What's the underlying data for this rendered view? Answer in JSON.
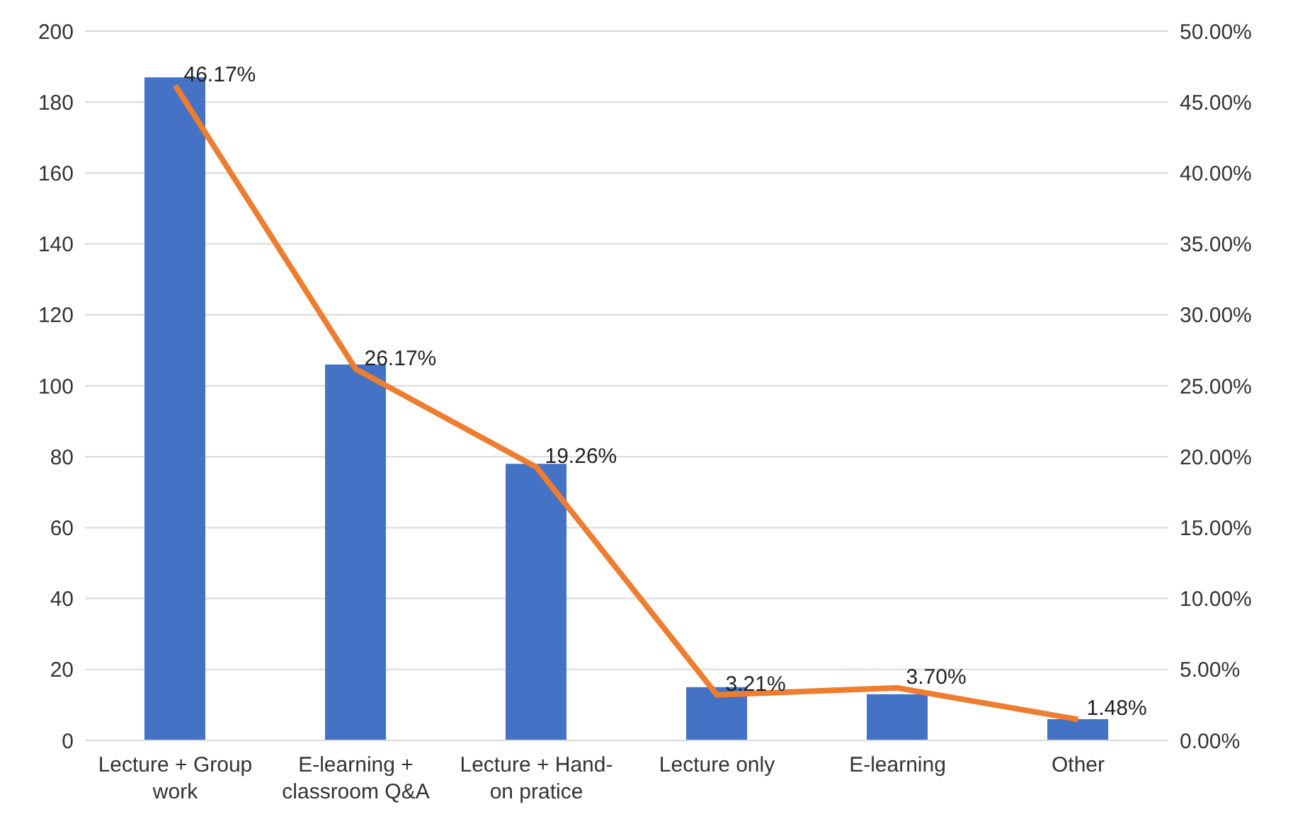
{
  "chart_data": {
    "type": "bar",
    "categories": [
      "Lecture + Group work",
      "E-learning + classroom Q&A",
      "Lecture + Hand-on pratice",
      "Lecture only",
      "E-learning",
      "Other"
    ],
    "series": [
      {
        "color": "#4472c4",
        "values": [
          187,
          106,
          78,
          15,
          13,
          6
        ]
      },
      {
        "type": "line",
        "axis": "y2",
        "color": "#ed7d31",
        "values": [
          46.17,
          26.17,
          19.26,
          3.21,
          3.7,
          1.48
        ],
        "value_labels": [
          "46.17%",
          "26.17%",
          "19.26%",
          "3.21%",
          "3.70%",
          "1.48%"
        ],
        "marker": "none",
        "line_style": "solid"
      }
    ],
    "ylim": [
      0,
      200
    ],
    "yticks": [
      0,
      20,
      40,
      60,
      80,
      100,
      120,
      140,
      160,
      180,
      200
    ],
    "y2lim": [
      0,
      50
    ],
    "y2ticks": [
      {
        "value": 0,
        "label": "0.00%"
      },
      {
        "value": 5,
        "label": "5.00%"
      },
      {
        "value": 10,
        "label": "10.00%"
      },
      {
        "value": 15,
        "label": "15.00%"
      },
      {
        "value": 20,
        "label": "20.00%"
      },
      {
        "value": 25,
        "label": "25.00%"
      },
      {
        "value": 30,
        "label": "30.00%"
      },
      {
        "value": 35,
        "label": "35.00%"
      },
      {
        "value": 40,
        "label": "40.00%"
      },
      {
        "value": 45,
        "label": "45.00%"
      },
      {
        "value": 50,
        "label": "50.00%"
      }
    ],
    "grid": "y",
    "legend": false
  }
}
